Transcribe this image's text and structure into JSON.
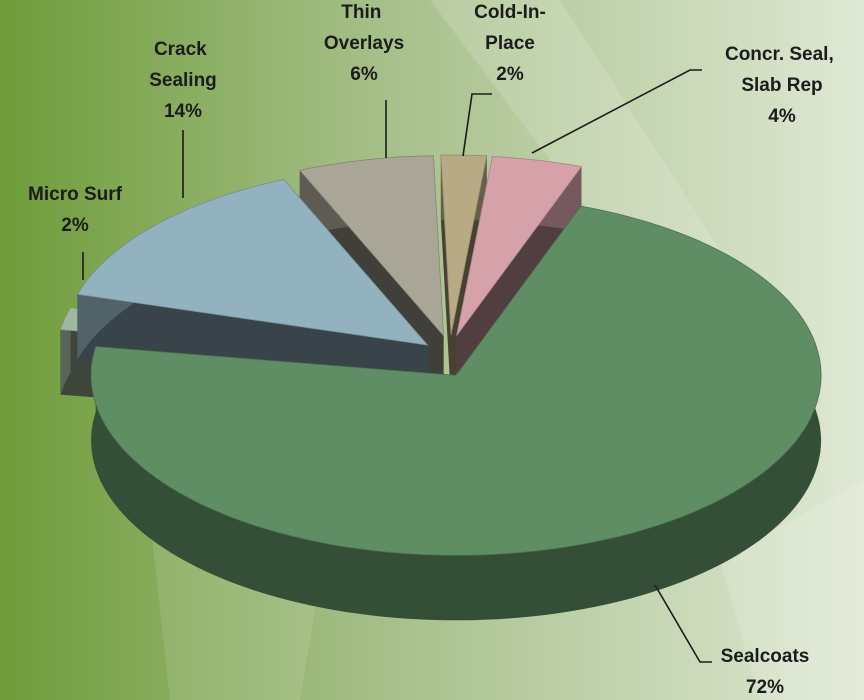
{
  "chart_data": {
    "type": "pie",
    "categories": [
      "Sealcoats",
      "Micro Surf",
      "Crack Sealing",
      "Thin Overlays",
      "Cold-In-Place",
      "Concr. Seal, Slab Rep"
    ],
    "values": [
      72,
      2,
      14,
      6,
      2,
      4
    ],
    "value_labels": [
      "72%",
      "2%",
      "14%",
      "6%",
      "2%",
      "4%"
    ],
    "colors": [
      "#5f8d64",
      "#a2b79f",
      "#93b2bf",
      "#a9a697",
      "#b9aa86",
      "#d6a2aa"
    ]
  }
}
